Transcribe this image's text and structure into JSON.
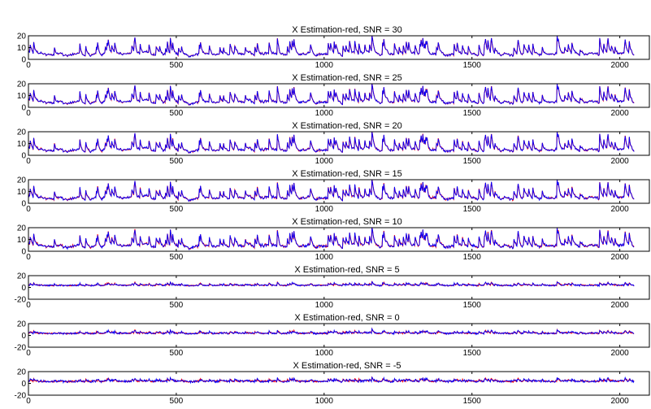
{
  "colors": {
    "series_red": "#ff0000",
    "series_blue": "#0000ff",
    "axis": "#000000"
  },
  "chart_data": [
    {
      "type": "line",
      "title": "X Estimation-red, SNR = 30",
      "xlim": [
        0,
        2100
      ],
      "ylim": [
        0,
        20
      ],
      "yticks": [
        "20",
        "10",
        "0"
      ],
      "xticks": [
        "0",
        "500",
        "1000",
        "1500",
        "2000"
      ],
      "series": [
        {
          "color": "red"
        },
        {
          "color": "blue"
        }
      ]
    },
    {
      "type": "line",
      "title": "X Estimation-red, SNR = 25",
      "xlim": [
        0,
        2100
      ],
      "ylim": [
        0,
        20
      ],
      "yticks": [
        "20",
        "10",
        "0"
      ],
      "xticks": [
        "0",
        "500",
        "1000",
        "1500",
        "2000"
      ],
      "series": [
        {
          "color": "red"
        },
        {
          "color": "blue"
        }
      ]
    },
    {
      "type": "line",
      "title": "X Estimation-red, SNR = 20",
      "xlim": [
        0,
        2100
      ],
      "ylim": [
        0,
        20
      ],
      "yticks": [
        "20",
        "10",
        "0"
      ],
      "xticks": [
        "0",
        "500",
        "1000",
        "1500",
        "2000"
      ],
      "series": [
        {
          "color": "red"
        },
        {
          "color": "blue"
        }
      ]
    },
    {
      "type": "line",
      "title": "X Estimation-red, SNR = 15",
      "xlim": [
        0,
        2100
      ],
      "ylim": [
        0,
        20
      ],
      "yticks": [
        "20",
        "10",
        "0"
      ],
      "xticks": [
        "0",
        "500",
        "1000",
        "1500",
        "2000"
      ],
      "series": [
        {
          "color": "red"
        },
        {
          "color": "blue"
        }
      ]
    },
    {
      "type": "line",
      "title": "X Estimation-red, SNR = 10",
      "xlim": [
        0,
        2100
      ],
      "ylim": [
        0,
        20
      ],
      "yticks": [
        "20",
        "10",
        "0"
      ],
      "xticks": [
        "0",
        "500",
        "1000",
        "1500",
        "2000"
      ],
      "series": [
        {
          "color": "red"
        },
        {
          "color": "blue"
        }
      ]
    },
    {
      "type": "line",
      "title": "X Estimation-red, SNR = 5",
      "xlim": [
        0,
        2100
      ],
      "ylim": [
        -20,
        20
      ],
      "yticks": [
        "20",
        "0",
        "-20"
      ],
      "xticks": [
        "0",
        "500",
        "1000",
        "1500",
        "2000"
      ],
      "series": [
        {
          "color": "red"
        },
        {
          "color": "blue"
        }
      ]
    },
    {
      "type": "line",
      "title": "X Estimation-red, SNR = 0",
      "xlim": [
        0,
        2100
      ],
      "ylim": [
        -20,
        20
      ],
      "yticks": [
        "20",
        "0",
        "-20"
      ],
      "xticks": [
        "0",
        "500",
        "1000",
        "1500",
        "2000"
      ],
      "series": [
        {
          "color": "red"
        },
        {
          "color": "blue"
        }
      ]
    },
    {
      "type": "line",
      "title": "X Estimation-red, SNR = -5",
      "xlim": [
        0,
        2100
      ],
      "ylim": [
        -20,
        20
      ],
      "yticks": [
        "20",
        "0",
        "-20"
      ],
      "xticks": [
        "0",
        "500",
        "1000",
        "1500",
        "2000"
      ],
      "series": [
        {
          "color": "red"
        },
        {
          "color": "blue"
        }
      ]
    }
  ]
}
